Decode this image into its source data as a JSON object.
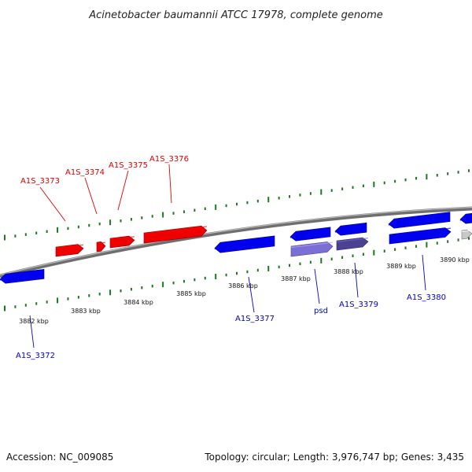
{
  "title": "Acinetobacter baumannii ATCC 17978, complete genome",
  "footer": {
    "accession": "Accession: NC_009085",
    "topology": "Topology: circular; Length: 3,976,747 bp; Genes: 3,435"
  },
  "colors": {
    "forward_gene": "#ee0000",
    "reverse_gene": "#0000ee",
    "reverse_gene_light": "#7b6fd6",
    "reverse_gene_dark": "#4a4290",
    "other_gene": "#c8c8c8",
    "backbone": "#8a8a8a",
    "tick": "#1a7a1a",
    "forward_label": "#e00000",
    "reverse_label": "#0000cc"
  },
  "scale_labels": [
    "3882 kbp",
    "3883 kbp",
    "3884 kbp",
    "3885 kbp",
    "3886 kbp",
    "3887 kbp",
    "3888 kbp",
    "3889 kbp",
    "3890 kbp"
  ],
  "forward_genes": [
    {
      "label": "A1S_3373"
    },
    {
      "label": "A1S_3374"
    },
    {
      "label": "A1S_3375"
    },
    {
      "label": "A1S_3376"
    }
  ],
  "reverse_genes": [
    {
      "label": "A1S_3372"
    },
    {
      "label": "A1S_3377"
    },
    {
      "label": "psd"
    },
    {
      "label": "A1S_3379"
    },
    {
      "label": "A1S_3380"
    }
  ]
}
